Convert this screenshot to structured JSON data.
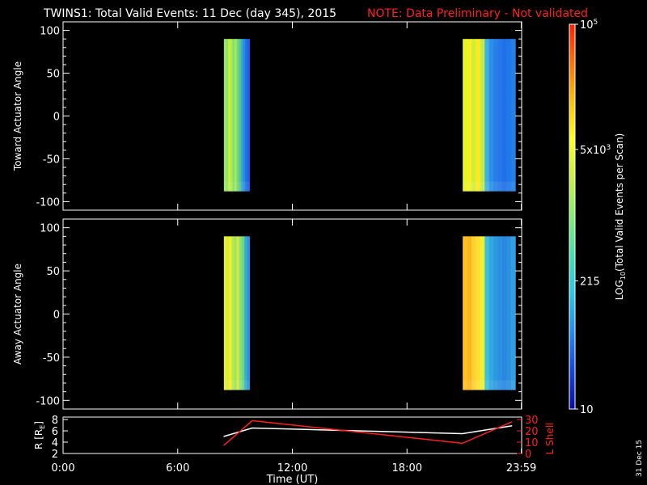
{
  "title": "TWINS1: Total Valid Events: 11 Dec (day 345), 2015",
  "note": "NOTE: Data Preliminary - Not validated",
  "date_stamp": "31 Dec 15",
  "colorbar": {
    "label": "LOG10(Total Valid Events per Scan)",
    "label_main": "LOG",
    "label_sub": "10",
    "label_rest": "(Total Valid Events per Scan)",
    "ticks": [
      {
        "value": 10,
        "base": "10",
        "exp": ""
      },
      {
        "value": 215,
        "base": "215",
        "exp": ""
      },
      {
        "value": 5000,
        "base": "5x10",
        "exp": "3"
      },
      {
        "value": 100000,
        "base": "10",
        "exp": "5"
      }
    ],
    "colors": [
      "#0a0aa8",
      "#1446e0",
      "#1e8cf0",
      "#28c8e8",
      "#40e0b0",
      "#80f070",
      "#c8f040",
      "#ffff20",
      "#ffc000",
      "#ff7000",
      "#ff2000"
    ]
  },
  "chart_data": [
    {
      "type": "heatmap",
      "ylabel": "Toward Actuator Angle",
      "ylim": [
        -110,
        110
      ],
      "yticks": [
        100,
        50,
        0,
        -50,
        -100
      ],
      "xlim_hours": [
        0,
        24
      ],
      "segments": [
        {
          "start": "08:25",
          "end": "09:45",
          "angle_range": [
            -88,
            90
          ],
          "colors": [
            "#9ee860",
            "#8ee468",
            "#c4f040",
            "#b0ec50",
            "#82e070",
            "#a4ea58",
            "#70d878",
            "#58c890",
            "#3aa8c8",
            "#2c8ce0",
            "#2070e8",
            "#1a60e8"
          ]
        },
        {
          "start": "20:55",
          "end": "23:40",
          "angle_range": [
            -88,
            90
          ],
          "colors": [
            "#e8f428",
            "#f4f020",
            "#d0f038",
            "#ffe820",
            "#c0ec48",
            "#40b0e0",
            "#2c90e8",
            "#2880e8",
            "#2478e8",
            "#2070e8",
            "#2078e8",
            "#2480e8"
          ]
        }
      ]
    },
    {
      "type": "heatmap",
      "ylabel": "Away Actuator Angle",
      "ylim": [
        -110,
        110
      ],
      "yticks": [
        100,
        50,
        0,
        -50,
        -100
      ],
      "xlim_hours": [
        0,
        24
      ],
      "segments": [
        {
          "start": "08:25",
          "end": "09:45",
          "angle_range": [
            -88,
            90
          ],
          "colors": [
            "#e8f030",
            "#d8ee38",
            "#f4f028",
            "#b8ea50",
            "#a0e460",
            "#d0ec40",
            "#8ee070",
            "#70d680",
            "#3ab0c8",
            "#2896e0"
          ]
        },
        {
          "start": "20:55",
          "end": "23:40",
          "angle_range": [
            -88,
            90
          ],
          "colors": [
            "#ffc020",
            "#f8b820",
            "#ffd030",
            "#ffe030",
            "#f0f030",
            "#40c0d8",
            "#30a8e0",
            "#2c98e0",
            "#2c90e0",
            "#2888e0",
            "#2c90e0",
            "#30a0e0"
          ]
        }
      ]
    },
    {
      "type": "line",
      "ylabel_left": "R [RE]",
      "ylabel_left_main": "R [R",
      "ylabel_left_sub": "E",
      "ylabel_left_end": "]",
      "ylabel_right": "L Shell",
      "xlabel": "Time (UT)",
      "xtick_labels": [
        "0:00",
        "6:00",
        "12:00",
        "18:00",
        "23:59"
      ],
      "xtick_hours": [
        0,
        6,
        12,
        18,
        23.983
      ],
      "ylim_left": [
        2,
        8
      ],
      "yticks_left": [
        8,
        6,
        4,
        2
      ],
      "ylim_right": [
        0,
        30
      ],
      "yticks_right": [
        30,
        20,
        10,
        0
      ],
      "series": [
        {
          "axis": "left",
          "color": "#ffffff",
          "x_hours": [
            8.4,
            9.9,
            20.9,
            23.5
          ],
          "values": [
            5.0,
            6.5,
            5.5,
            6.9
          ]
        },
        {
          "axis": "right",
          "color": "#ff2020",
          "x_hours": [
            8.4,
            9.9,
            20.9,
            23.5
          ],
          "values": [
            7,
            29,
            9,
            28
          ]
        }
      ]
    }
  ]
}
